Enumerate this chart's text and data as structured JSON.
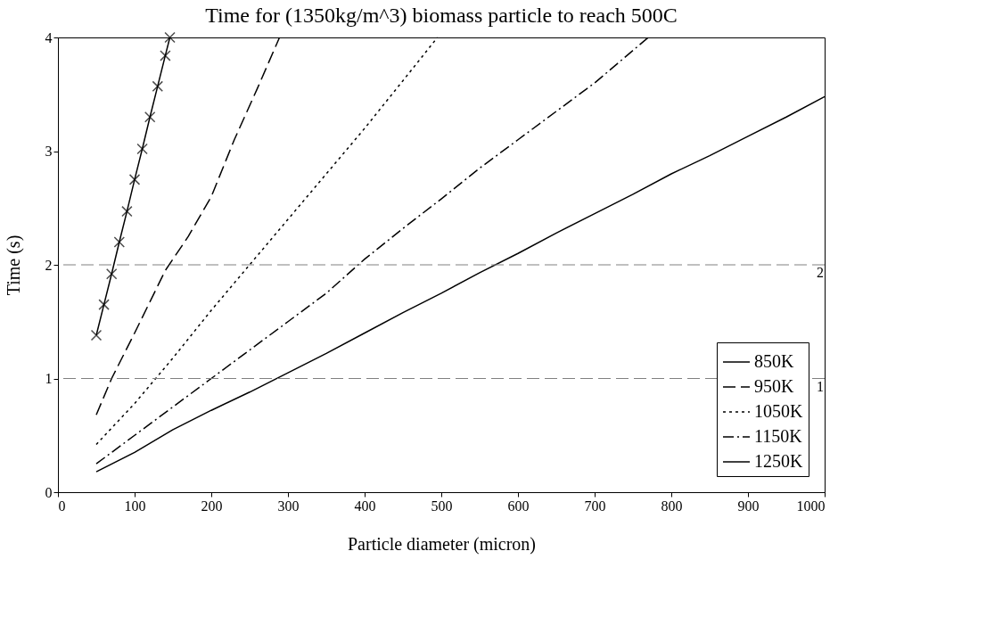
{
  "chart_data": {
    "type": "line",
    "title": "Time for (1350kg/m^3) biomass particle to reach 500C",
    "xlabel": "Particle diameter (micron)",
    "ylabel": "Time (s)",
    "xlim": [
      0,
      1000
    ],
    "xticks": [
      0,
      100,
      200,
      300,
      400,
      500,
      600,
      700,
      800,
      900,
      1000
    ],
    "ylim": [
      0,
      4
    ],
    "yticks": [
      0,
      1,
      2,
      3,
      4
    ],
    "grid": false,
    "legend": "bottom right",
    "ref_lines": [
      {
        "axis": "y",
        "value": 1,
        "label": "1",
        "color": "#808080",
        "line_style": "dashed"
      },
      {
        "axis": "y",
        "value": 2,
        "label": "2",
        "color": "#808080",
        "line_style": "dashed"
      }
    ],
    "series": [
      {
        "name": "850K",
        "color": "#000000",
        "marker": "cross",
        "line_style": "solid",
        "x": [
          50,
          60,
          70,
          80,
          90,
          100,
          110,
          120,
          130,
          140,
          146
        ],
        "values": [
          1.38,
          1.65,
          1.92,
          2.2,
          2.47,
          2.75,
          3.02,
          3.3,
          3.57,
          3.84,
          4.0
        ]
      },
      {
        "name": "950K",
        "color": "#000000",
        "marker": "none",
        "line_style": "dashed",
        "x": [
          50,
          70,
          100,
          140,
          170,
          200,
          230,
          260,
          289
        ],
        "values": [
          0.68,
          1.0,
          1.4,
          1.95,
          2.25,
          2.6,
          3.1,
          3.55,
          4.0
        ]
      },
      {
        "name": "1050K",
        "color": "#000000",
        "marker": "none",
        "line_style": "dotted",
        "x": [
          50,
          100,
          150,
          200,
          250,
          300,
          350,
          400,
          450,
          495
        ],
        "values": [
          0.42,
          0.78,
          1.18,
          1.6,
          2.0,
          2.4,
          2.8,
          3.2,
          3.62,
          4.0
        ]
      },
      {
        "name": "1150K",
        "color": "#000000",
        "marker": "none",
        "line_style": "dashdot",
        "x": [
          50,
          100,
          150,
          200,
          250,
          300,
          350,
          400,
          450,
          500,
          550,
          600,
          650,
          700,
          770
        ],
        "values": [
          0.25,
          0.5,
          0.75,
          1.0,
          1.25,
          1.5,
          1.75,
          2.05,
          2.32,
          2.58,
          2.85,
          3.1,
          3.35,
          3.6,
          4.0
        ]
      },
      {
        "name": "1250K",
        "color": "#000000",
        "marker": "none",
        "line_style": "solid",
        "x": [
          50,
          100,
          150,
          200,
          250,
          300,
          350,
          400,
          450,
          500,
          550,
          600,
          650,
          700,
          750,
          800,
          850,
          900,
          950,
          1000
        ],
        "values": [
          0.18,
          0.35,
          0.55,
          0.72,
          0.88,
          1.05,
          1.22,
          1.4,
          1.58,
          1.75,
          1.93,
          2.1,
          2.28,
          2.45,
          2.62,
          2.8,
          2.96,
          3.13,
          3.3,
          3.48
        ]
      }
    ]
  }
}
